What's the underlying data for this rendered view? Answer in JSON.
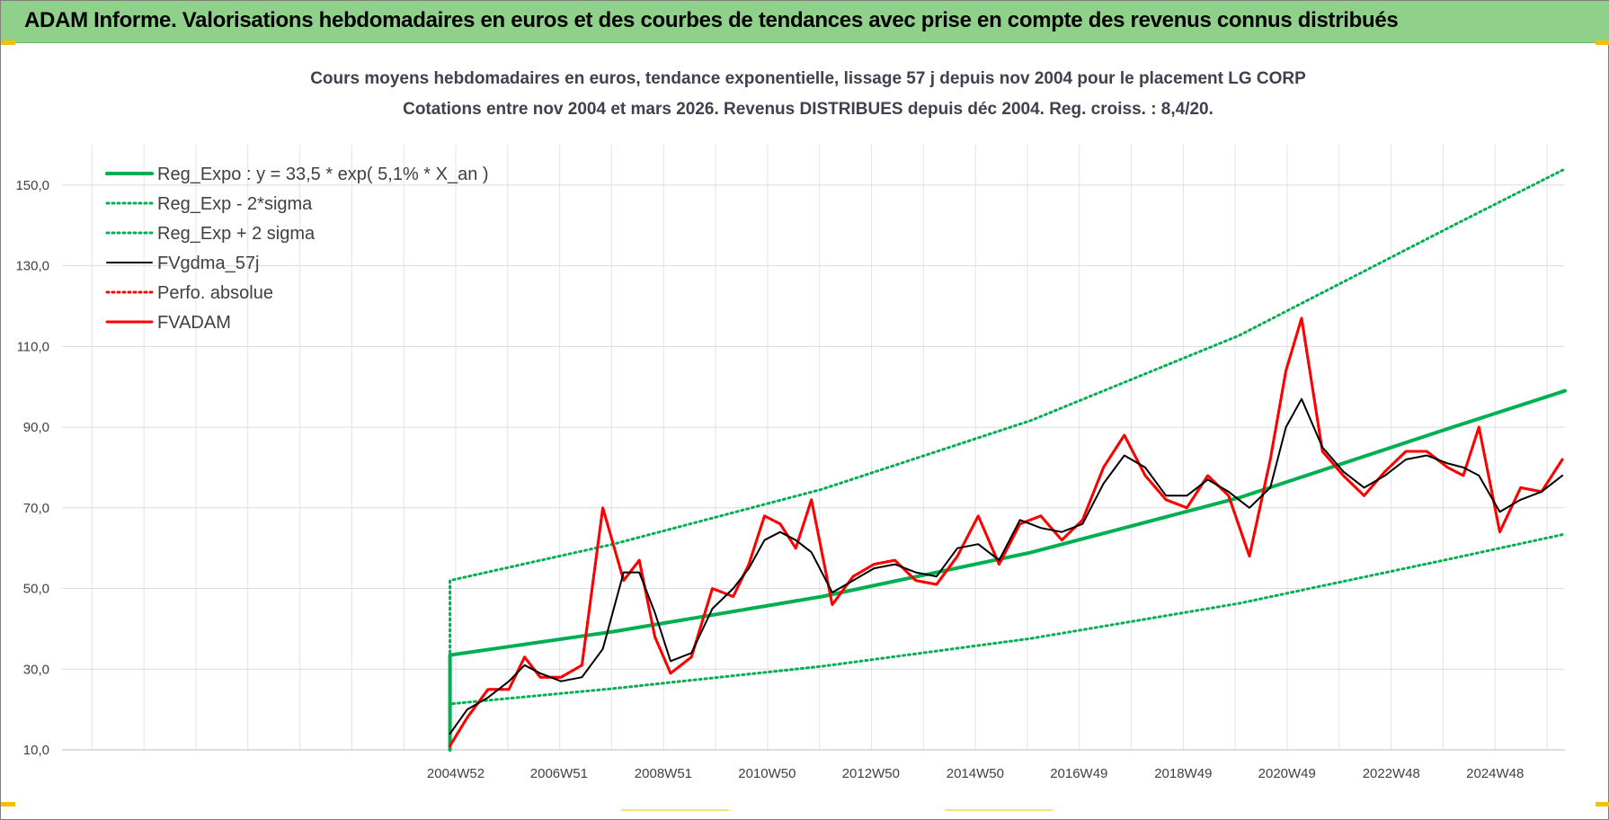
{
  "banner": {
    "title": "ADAM Informe. Valorisations hebdomadaires en euros et des courbes de tendances avec prise en compte des revenus connus distribués"
  },
  "chart_data": {
    "type": "line",
    "title": "Cours moyens hebdomadaires en euros, tendance exponentielle, lissage 57 j depuis nov 2004  pour le  placement LG CORP",
    "subtitle": "Cotations entre nov 2004 et mars 2026. Revenus DISTRIBUES depuis déc 2004.  Reg. croiss. : 8,4/20.",
    "xlabel": "",
    "ylabel": "",
    "ylim": [
      10,
      160
    ],
    "yticks": [
      10,
      30,
      50,
      70,
      90,
      110,
      130,
      150
    ],
    "ytick_labels": [
      "10,0",
      "30,0",
      "50,0",
      "70,0",
      "90,0",
      "110,0",
      "130,0",
      "150,0"
    ],
    "xlim": [
      1997.43,
      2026.25
    ],
    "xticks": [
      2004.98,
      2006.96,
      2008.96,
      2010.95,
      2012.94,
      2014.94,
      2016.93,
      2018.93,
      2020.92,
      2022.92,
      2024.91
    ],
    "xtick_labels": [
      "2004W52",
      "2006W51",
      "2008W51",
      "2010W50",
      "2012W50",
      "2014W50",
      "2016W49",
      "2018W49",
      "2020W49",
      "2022W48",
      "2024W48"
    ],
    "grid": true,
    "legend_position": "top-left",
    "series": [
      {
        "name": "Reg_Expo : y = 33,5 * exp( 5,1% *  X_an )",
        "color": "#00b050",
        "style": "solid-thick",
        "x": [
          2004.87,
          2008,
          2012,
          2016,
          2020,
          2024,
          2026.25
        ],
        "y": [
          33.5,
          39.3,
          48.0,
          58.9,
          72.5,
          89.6,
          99.0
        ]
      },
      {
        "name": "Reg_Exp - 2*sigma",
        "color": "#00b050",
        "style": "dotted",
        "x": [
          2004.87,
          2008,
          2012,
          2016,
          2020,
          2024,
          2026.25
        ],
        "y": [
          21.4,
          25.2,
          30.7,
          37.6,
          46.3,
          57.2,
          63.5
        ]
      },
      {
        "name": "Reg_Exp + 2 sigma",
        "color": "#00b050",
        "style": "dotted",
        "x": [
          2004.87,
          2008,
          2012,
          2016,
          2020,
          2024,
          2026.25
        ],
        "y": [
          52.0,
          61.0,
          74.6,
          91.6,
          112.7,
          139.3,
          154.0
        ]
      },
      {
        "name": "FVgdma_57j",
        "color": "#000000",
        "style": "solid",
        "x": [
          2004.87,
          2005.2,
          2005.6,
          2006.0,
          2006.3,
          2006.6,
          2007.0,
          2007.4,
          2007.8,
          2008.2,
          2008.5,
          2008.8,
          2009.1,
          2009.5,
          2009.9,
          2010.3,
          2010.6,
          2010.9,
          2011.2,
          2011.5,
          2011.8,
          2012.2,
          2012.6,
          2013.0,
          2013.4,
          2013.8,
          2014.2,
          2014.6,
          2015.0,
          2015.4,
          2015.8,
          2016.2,
          2016.6,
          2017.0,
          2017.4,
          2017.8,
          2018.2,
          2018.6,
          2019.0,
          2019.4,
          2019.8,
          2020.2,
          2020.6,
          2020.9,
          2021.2,
          2021.6,
          2022.0,
          2022.4,
          2022.8,
          2023.2,
          2023.6,
          2024.0,
          2024.3,
          2024.6,
          2025.0,
          2025.4,
          2025.8,
          2026.2
        ],
        "y": [
          14,
          20,
          23,
          27,
          31,
          29,
          27,
          28,
          35,
          54,
          54,
          44,
          32,
          34,
          45,
          50,
          55,
          62,
          64,
          62,
          59,
          49,
          52,
          55,
          56,
          54,
          53,
          60,
          61,
          57,
          67,
          65,
          64,
          66,
          76,
          83,
          80,
          73,
          73,
          77,
          74,
          70,
          75,
          90,
          97,
          85,
          79,
          75,
          78,
          82,
          83,
          81,
          80,
          78,
          69,
          72,
          74,
          78
        ]
      },
      {
        "name": "Perfo. absolue",
        "color": "#ff0000",
        "style": "dotted",
        "x": [
          2004.87,
          2005.2,
          2005.6,
          2006.0,
          2006.3,
          2006.6,
          2007.0,
          2007.4,
          2007.8,
          2008.2,
          2008.5,
          2008.8,
          2009.1,
          2009.5,
          2009.9,
          2010.3,
          2010.6,
          2010.9,
          2011.2,
          2011.5,
          2011.8,
          2012.2,
          2012.6,
          2013.0,
          2013.4,
          2013.8,
          2014.2,
          2014.6,
          2015.0,
          2015.4,
          2015.8,
          2016.2,
          2016.6,
          2017.0,
          2017.4,
          2017.8,
          2018.2,
          2018.6,
          2019.0,
          2019.4,
          2019.8,
          2020.2,
          2020.6,
          2020.9,
          2021.2,
          2021.6,
          2022.0,
          2022.4,
          2022.8,
          2023.2,
          2023.6,
          2024.0,
          2024.3,
          2024.6,
          2025.0,
          2025.4,
          2025.8,
          2026.2
        ],
        "y": [
          11,
          18,
          25,
          25,
          33,
          28,
          28,
          31,
          70,
          52,
          57,
          38,
          29,
          33,
          50,
          48,
          56,
          68,
          66,
          60,
          72,
          46,
          53,
          56,
          57,
          52,
          51,
          58,
          68,
          56,
          66,
          68,
          62,
          67,
          80,
          88,
          78,
          72,
          70,
          78,
          73,
          58,
          82,
          104,
          117,
          84,
          78,
          73,
          79,
          84,
          84,
          80,
          78,
          90,
          64,
          75,
          74,
          82
        ]
      },
      {
        "name": "FVADAM",
        "color": "#ff0000",
        "style": "solid-thick",
        "x": [
          2004.87,
          2005.2,
          2005.6,
          2006.0,
          2006.3,
          2006.6,
          2007.0,
          2007.4,
          2007.8,
          2008.2,
          2008.5,
          2008.8,
          2009.1,
          2009.5,
          2009.9,
          2010.3,
          2010.6,
          2010.9,
          2011.2,
          2011.5,
          2011.8,
          2012.2,
          2012.6,
          2013.0,
          2013.4,
          2013.8,
          2014.2,
          2014.6,
          2015.0,
          2015.4,
          2015.8,
          2016.2,
          2016.6,
          2017.0,
          2017.4,
          2017.8,
          2018.2,
          2018.6,
          2019.0,
          2019.4,
          2019.8,
          2020.2,
          2020.6,
          2020.9,
          2021.2,
          2021.6,
          2022.0,
          2022.4,
          2022.8,
          2023.2,
          2023.6,
          2024.0,
          2024.3,
          2024.6,
          2025.0,
          2025.4,
          2025.8,
          2026.2
        ],
        "y": [
          11,
          18,
          25,
          25,
          33,
          28,
          28,
          31,
          70,
          52,
          57,
          38,
          29,
          33,
          50,
          48,
          56,
          68,
          66,
          60,
          72,
          46,
          53,
          56,
          57,
          52,
          51,
          58,
          68,
          56,
          66,
          68,
          62,
          67,
          80,
          88,
          78,
          72,
          70,
          78,
          73,
          58,
          82,
          104,
          117,
          84,
          78,
          73,
          79,
          84,
          84,
          80,
          78,
          90,
          64,
          75,
          74,
          82
        ]
      }
    ]
  }
}
